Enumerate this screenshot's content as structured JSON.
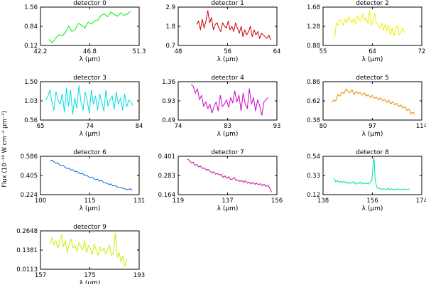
{
  "figure": {
    "ylabel": "Flux (10⁻¹⁴ W cm⁻² μm⁻¹)"
  },
  "chart_data": [
    {
      "type": "line",
      "title": "detector 0",
      "xlabel": "λ (μm)",
      "xlim": [
        42.2,
        51.3
      ],
      "ylim": [
        0.12,
        1.56
      ],
      "xticks": [
        "42.2",
        "46.8",
        "51.3"
      ],
      "yticks": [
        "0.12",
        "0.84",
        "1.56"
      ],
      "color": "#00ee00",
      "x": [
        43.0,
        43.3,
        43.6,
        43.9,
        44.2,
        44.5,
        44.8,
        45.1,
        45.4,
        45.7,
        46.0,
        46.3,
        46.6,
        46.9,
        47.2,
        47.5,
        47.8,
        48.1,
        48.4,
        48.7,
        49.0,
        49.3,
        49.6,
        49.9,
        50.2,
        50.5
      ],
      "y": [
        0.35,
        0.22,
        0.4,
        0.52,
        0.48,
        0.6,
        0.85,
        0.65,
        0.72,
        0.95,
        0.88,
        0.78,
        1.0,
        0.92,
        1.05,
        1.08,
        1.25,
        1.3,
        1.2,
        1.38,
        1.28,
        1.22,
        1.35,
        1.25,
        1.3,
        1.4
      ]
    },
    {
      "type": "line",
      "title": "detector 1",
      "xlabel": "λ (μm)",
      "xlim": [
        48,
        64
      ],
      "ylim": [
        0.7,
        2.9
      ],
      "xticks": [
        "48",
        "56",
        "64"
      ],
      "yticks": [
        "0.7",
        "1.8",
        "2.9"
      ],
      "color": "#cc0000",
      "x": [
        51.0,
        51.3,
        51.6,
        51.9,
        52.2,
        52.5,
        52.8,
        53.1,
        53.4,
        53.7,
        54.0,
        54.3,
        54.6,
        54.9,
        55.2,
        55.5,
        55.8,
        56.1,
        56.4,
        56.7,
        57.0,
        57.3,
        57.6,
        57.9,
        58.2,
        58.5,
        58.8,
        59.1,
        59.4,
        59.7,
        60.0,
        60.3,
        60.6,
        60.9,
        61.2,
        61.5,
        61.8,
        62.1,
        62.4,
        62.7,
        63.0
      ],
      "y": [
        1.9,
        2.1,
        1.6,
        2.2,
        1.7,
        2.1,
        2.7,
        2.0,
        2.3,
        1.6,
        1.9,
        2.0,
        1.7,
        1.5,
        2.0,
        1.8,
        1.7,
        2.1,
        1.6,
        1.8,
        1.5,
        2.0,
        1.7,
        1.4,
        1.8,
        1.2,
        1.6,
        1.3,
        1.5,
        1.8,
        1.2,
        1.6,
        1.3,
        1.5,
        1.1,
        1.4,
        1.3,
        1.2,
        1.1,
        1.3,
        1.0
      ]
    },
    {
      "type": "line",
      "title": "detector 2",
      "xlabel": "λ (μm)",
      "xlim": [
        55,
        72
      ],
      "ylim": [
        0.88,
        1.68
      ],
      "xticks": [
        "55",
        "64",
        "72"
      ],
      "yticks": [
        "0.88",
        "1.28",
        "1.68"
      ],
      "color": "#eeee00",
      "x": [
        57.0,
        57.3,
        57.6,
        57.9,
        58.2,
        58.5,
        58.8,
        59.1,
        59.4,
        59.7,
        60.0,
        60.3,
        60.6,
        60.9,
        61.2,
        61.5,
        61.8,
        62.1,
        62.4,
        62.7,
        63.0,
        63.3,
        63.6,
        63.9,
        64.2,
        64.5,
        64.8,
        65.1,
        65.4,
        65.7,
        66.0,
        66.3,
        66.6,
        66.9,
        67.2,
        67.5,
        67.8,
        68.1,
        68.4,
        68.7,
        69.0
      ],
      "y": [
        1.05,
        1.35,
        1.3,
        1.42,
        1.38,
        1.3,
        1.44,
        1.35,
        1.48,
        1.4,
        1.36,
        1.45,
        1.32,
        1.5,
        1.42,
        1.38,
        1.55,
        1.4,
        1.46,
        1.35,
        1.6,
        1.3,
        1.4,
        1.55,
        1.35,
        1.28,
        1.25,
        1.35,
        1.2,
        1.32,
        1.18,
        1.3,
        1.1,
        1.25,
        1.08,
        1.22,
        1.3,
        1.1,
        1.15,
        1.25,
        1.15
      ]
    },
    {
      "type": "line",
      "title": "detector 3",
      "xlabel": "λ (μm)",
      "xlim": [
        65,
        84
      ],
      "ylim": [
        0.56,
        1.5
      ],
      "xticks": [
        "65",
        "74",
        "84"
      ],
      "yticks": [
        "0.56",
        "1.03",
        "1.50"
      ],
      "color": "#00dddd",
      "x": [
        66.0,
        66.4,
        66.8,
        67.2,
        67.6,
        68.0,
        68.4,
        68.8,
        69.2,
        69.6,
        70.0,
        70.4,
        70.8,
        71.2,
        71.6,
        72.0,
        72.4,
        72.8,
        73.2,
        73.6,
        74.0,
        74.4,
        74.8,
        75.2,
        75.6,
        76.0,
        76.4,
        76.8,
        77.2,
        77.6,
        78.0,
        78.4,
        78.8,
        79.2,
        79.6,
        80.0,
        80.4,
        80.8,
        81.2,
        81.6,
        82.0,
        82.4,
        82.8
      ],
      "y": [
        1.05,
        1.12,
        1.3,
        1.0,
        0.8,
        1.25,
        1.05,
        0.95,
        1.2,
        0.75,
        1.35,
        0.9,
        1.3,
        0.7,
        1.1,
        0.85,
        1.4,
        1.0,
        0.8,
        1.25,
        1.05,
        0.72,
        1.3,
        0.95,
        1.15,
        0.8,
        1.2,
        1.0,
        0.78,
        1.3,
        0.9,
        1.05,
        1.15,
        0.82,
        1.25,
        0.95,
        1.1,
        0.8,
        1.2,
        0.88,
        1.05,
        1.0,
        0.92
      ]
    },
    {
      "type": "line",
      "title": "detector 4",
      "xlabel": "λ (μm)",
      "xlim": [
        74,
        93
      ],
      "ylim": [
        0.49,
        1.36
      ],
      "xticks": [
        "74",
        "83",
        "93"
      ],
      "yticks": [
        "0.49",
        "0.93",
        "1.36"
      ],
      "color": "#cc00cc",
      "x": [
        76.5,
        76.9,
        77.3,
        77.7,
        78.1,
        78.5,
        78.9,
        79.3,
        79.7,
        80.1,
        80.5,
        80.9,
        81.3,
        81.7,
        82.1,
        82.5,
        82.9,
        83.3,
        83.7,
        84.1,
        84.5,
        84.9,
        85.3,
        85.7,
        86.1,
        86.5,
        86.9,
        87.3,
        87.7,
        88.1,
        88.5,
        88.9,
        89.3,
        89.7,
        90.1,
        90.5,
        90.9,
        91.3
      ],
      "y": [
        1.3,
        1.25,
        1.1,
        1.2,
        0.95,
        1.05,
        0.8,
        0.9,
        0.75,
        0.85,
        0.65,
        0.8,
        0.9,
        0.7,
        1.05,
        0.8,
        0.85,
        0.95,
        0.78,
        1.0,
        0.88,
        1.15,
        0.9,
        1.05,
        0.7,
        1.1,
        0.85,
        0.75,
        1.2,
        0.85,
        1.0,
        0.7,
        0.95,
        0.8,
        0.6,
        0.9,
        0.95,
        1.0
      ]
    },
    {
      "type": "line",
      "title": "detector 5",
      "xlabel": "λ (μm)",
      "xlim": [
        80,
        114
      ],
      "ylim": [
        0.38,
        0.86
      ],
      "xticks": [
        "80",
        "97",
        "114"
      ],
      "yticks": [
        "0.38",
        "0.62",
        "0.86"
      ],
      "color": "#ee8800",
      "x": [
        83.0,
        83.7,
        84.4,
        85.1,
        85.8,
        86.5,
        87.2,
        87.9,
        88.6,
        89.3,
        90.0,
        90.7,
        91.4,
        92.1,
        92.8,
        93.5,
        94.2,
        94.9,
        95.6,
        96.3,
        97.0,
        97.7,
        98.4,
        99.1,
        99.8,
        100.5,
        101.2,
        101.9,
        102.6,
        103.3,
        104.0,
        104.7,
        105.4,
        106.1,
        106.8,
        107.5,
        108.2,
        108.9,
        109.6,
        110.3,
        111.0,
        111.7
      ],
      "y": [
        0.6,
        0.63,
        0.62,
        0.7,
        0.68,
        0.73,
        0.71,
        0.77,
        0.74,
        0.72,
        0.76,
        0.7,
        0.74,
        0.71,
        0.73,
        0.69,
        0.72,
        0.68,
        0.7,
        0.66,
        0.69,
        0.65,
        0.67,
        0.63,
        0.66,
        0.62,
        0.64,
        0.6,
        0.63,
        0.58,
        0.61,
        0.57,
        0.59,
        0.55,
        0.57,
        0.53,
        0.55,
        0.5,
        0.52,
        0.46,
        0.48,
        0.45
      ]
    },
    {
      "type": "line",
      "title": "detector 6",
      "xlabel": "λ (μm)",
      "xlim": [
        100,
        131
      ],
      "ylim": [
        0.224,
        0.586
      ],
      "xticks": [
        "100",
        "115",
        "131"
      ],
      "yticks": [
        "0.224",
        "0.405",
        "0.586"
      ],
      "color": "#0066cc",
      "x": [
        103.0,
        103.6,
        104.2,
        104.8,
        105.4,
        106.0,
        106.6,
        107.2,
        107.8,
        108.4,
        109.0,
        109.6,
        110.2,
        110.8,
        111.4,
        112.0,
        112.6,
        113.2,
        113.8,
        114.4,
        115.0,
        115.6,
        116.2,
        116.8,
        117.4,
        118.0,
        118.6,
        119.2,
        119.8,
        120.4,
        121.0,
        121.6,
        122.2,
        122.8,
        123.4,
        124.0,
        124.6,
        125.2,
        125.8,
        126.4,
        127.0,
        127.6,
        128.2,
        128.8
      ],
      "y": [
        0.54,
        0.55,
        0.535,
        0.52,
        0.525,
        0.505,
        0.495,
        0.5,
        0.48,
        0.47,
        0.475,
        0.455,
        0.46,
        0.44,
        0.445,
        0.43,
        0.42,
        0.425,
        0.405,
        0.41,
        0.395,
        0.385,
        0.39,
        0.375,
        0.365,
        0.37,
        0.35,
        0.36,
        0.34,
        0.335,
        0.33,
        0.32,
        0.325,
        0.305,
        0.31,
        0.3,
        0.29,
        0.295,
        0.285,
        0.28,
        0.275,
        0.27,
        0.28,
        0.262
      ]
    },
    {
      "type": "line",
      "title": "detector 7",
      "xlabel": "λ (μm)",
      "xlim": [
        119,
        156
      ],
      "ylim": [
        0.164,
        0.401
      ],
      "xticks": [
        "119",
        "137",
        "156"
      ],
      "yticks": [
        "0.164",
        "0.283",
        "0.401"
      ],
      "color": "#cc0099",
      "x": [
        122.5,
        123.2,
        123.9,
        124.6,
        125.3,
        126.0,
        126.7,
        127.4,
        128.1,
        128.8,
        129.5,
        130.2,
        130.9,
        131.6,
        132.3,
        133.0,
        133.7,
        134.4,
        135.1,
        135.8,
        136.5,
        137.2,
        137.9,
        138.6,
        139.3,
        140.0,
        140.7,
        141.4,
        142.1,
        142.8,
        143.5,
        144.2,
        144.9,
        145.6,
        146.3,
        147.0,
        147.7,
        148.4,
        149.1,
        149.8,
        150.5,
        151.2,
        151.9,
        152.6,
        153.3,
        154.0
      ],
      "y": [
        0.385,
        0.375,
        0.36,
        0.365,
        0.345,
        0.35,
        0.335,
        0.34,
        0.325,
        0.33,
        0.315,
        0.32,
        0.31,
        0.3,
        0.305,
        0.29,
        0.295,
        0.285,
        0.29,
        0.27,
        0.28,
        0.265,
        0.275,
        0.258,
        0.26,
        0.27,
        0.25,
        0.255,
        0.245,
        0.252,
        0.24,
        0.25,
        0.235,
        0.242,
        0.23,
        0.24,
        0.228,
        0.235,
        0.225,
        0.232,
        0.22,
        0.228,
        0.215,
        0.222,
        0.205,
        0.18
      ]
    },
    {
      "type": "line",
      "title": "detector 8",
      "xlabel": "λ (μm)",
      "xlim": [
        138,
        174
      ],
      "ylim": [
        0.12,
        0.54
      ],
      "xticks": [
        "138",
        "156",
        "174"
      ],
      "yticks": [
        "0.12",
        "0.33",
        "0.54"
      ],
      "color": "#00ddaa",
      "x": [
        142.0,
        142.6,
        143.2,
        143.8,
        144.4,
        145.0,
        145.6,
        146.2,
        146.8,
        147.4,
        148.0,
        148.6,
        149.2,
        149.8,
        150.4,
        151.0,
        151.6,
        152.2,
        152.8,
        153.4,
        154.0,
        154.6,
        155.2,
        155.8,
        156.2,
        156.6,
        157.0,
        157.6,
        158.2,
        158.8,
        159.4,
        160.0,
        160.6,
        161.2,
        161.8,
        162.4,
        163.0,
        163.6,
        164.2,
        164.8,
        165.4,
        166.0,
        166.6,
        167.2,
        167.8,
        168.4,
        169.0,
        169.6
      ],
      "y": [
        0.3,
        0.26,
        0.275,
        0.255,
        0.265,
        0.25,
        0.27,
        0.245,
        0.26,
        0.24,
        0.255,
        0.245,
        0.265,
        0.235,
        0.25,
        0.24,
        0.26,
        0.235,
        0.25,
        0.24,
        0.245,
        0.235,
        0.26,
        0.27,
        0.44,
        0.52,
        0.28,
        0.2,
        0.185,
        0.19,
        0.175,
        0.185,
        0.18,
        0.175,
        0.19,
        0.172,
        0.185,
        0.17,
        0.18,
        0.175,
        0.185,
        0.17,
        0.18,
        0.175,
        0.185,
        0.172,
        0.182,
        0.178
      ]
    },
    {
      "type": "line",
      "title": "detector 9",
      "xlabel": "λ (μm)",
      "xlim": [
        157,
        193
      ],
      "ylim": [
        0.0113,
        0.2648
      ],
      "xticks": [
        "157",
        "175",
        "193"
      ],
      "yticks": [
        "0.0113",
        "0.1381",
        "0.2648"
      ],
      "color": "#ccee00",
      "x": [
        160.5,
        161.2,
        161.9,
        162.6,
        163.3,
        164.0,
        164.7,
        165.4,
        166.1,
        166.8,
        167.5,
        168.2,
        168.9,
        169.6,
        170.3,
        171.0,
        171.7,
        172.4,
        173.1,
        173.8,
        174.5,
        175.2,
        175.9,
        176.6,
        177.3,
        178.0,
        178.7,
        179.4,
        180.1,
        180.8,
        181.5,
        182.2,
        182.9,
        183.6,
        184.3,
        185.0,
        185.7,
        186.4,
        187.1,
        187.8,
        188.5
      ],
      "y": [
        0.18,
        0.22,
        0.17,
        0.2,
        0.15,
        0.19,
        0.24,
        0.16,
        0.2,
        0.12,
        0.18,
        0.21,
        0.15,
        0.17,
        0.13,
        0.19,
        0.16,
        0.14,
        0.2,
        0.12,
        0.17,
        0.15,
        0.11,
        0.18,
        0.14,
        0.1,
        0.16,
        0.13,
        0.15,
        0.11,
        0.14,
        0.17,
        0.1,
        0.12,
        0.25,
        0.09,
        0.12,
        0.06,
        0.1,
        0.03,
        0.08
      ]
    }
  ]
}
